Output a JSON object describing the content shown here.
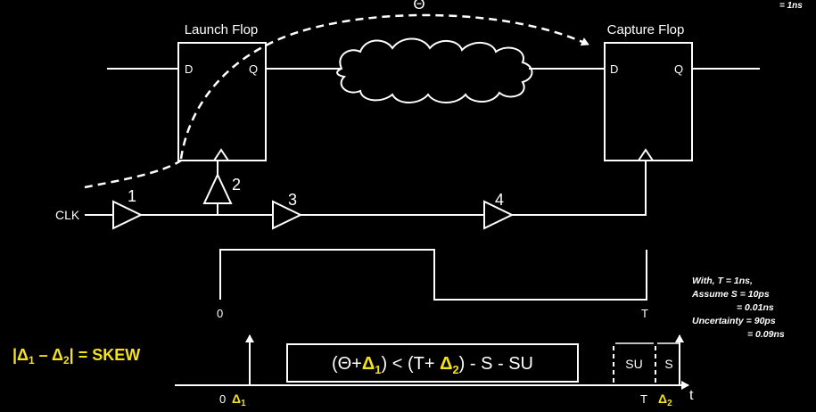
{
  "top_right": {
    "note": "= 1ns"
  },
  "launch_flop": {
    "title": "Launch Flop",
    "d": "D",
    "q": "Q"
  },
  "capture_flop": {
    "title": "Capture Flop",
    "d": "D",
    "q": "Q"
  },
  "path": {
    "delay_symbol": "Θ"
  },
  "clock": {
    "label": "CLK",
    "buffers": [
      "1",
      "2",
      "3",
      "4"
    ]
  },
  "waveform": {
    "start_label": "0",
    "end_label": "T"
  },
  "skew": {
    "open": "|Δ",
    "sub1": "1",
    "minus": " – Δ",
    "sub2": "2",
    "close": "| = SKEW"
  },
  "formula": {
    "part1": "(Θ+",
    "delta1": "Δ",
    "sub1": "1",
    "part2": ") < (T+ ",
    "delta2": "Δ",
    "sub2": "2",
    "part3": ") - S - SU"
  },
  "timeline": {
    "zero": "0",
    "delta1": "Δ",
    "sub1": "1",
    "t_label": "T",
    "delta2": "Δ",
    "sub2": "2",
    "t_axis": "t",
    "su": "SU",
    "s": "S"
  },
  "notes": {
    "line1": "With, T = 1ns,",
    "line2": "Assume S = 10ps",
    "line3": "= 0.01ns",
    "line4": "Uncertainty = 90ps",
    "line5": "= 0.09ns"
  },
  "colors": {
    "background": "#000000",
    "foreground": "#ffffff",
    "highlight": "#f5e21b"
  }
}
